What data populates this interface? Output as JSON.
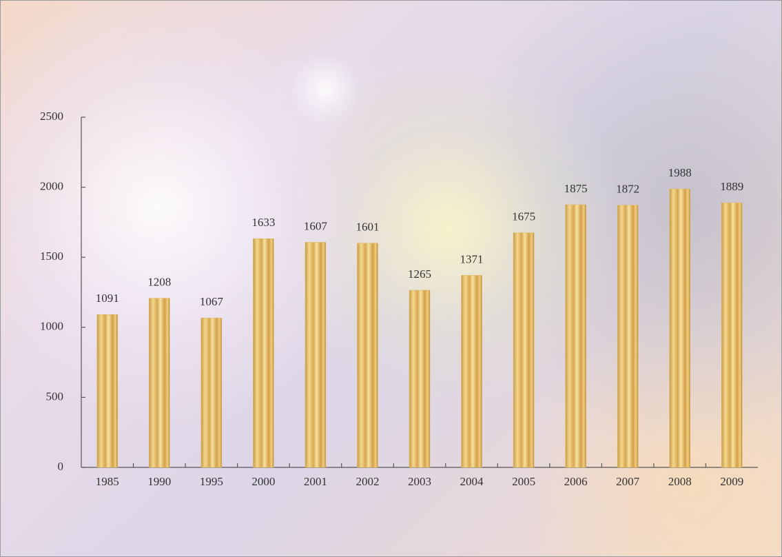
{
  "chart_data": {
    "type": "bar",
    "categories": [
      "1985",
      "1990",
      "1995",
      "2000",
      "2001",
      "2002",
      "2003",
      "2004",
      "2005",
      "2006",
      "2007",
      "2008",
      "2009"
    ],
    "values": [
      1091,
      1208,
      1067,
      1633,
      1607,
      1601,
      1265,
      1371,
      1675,
      1875,
      1872,
      1988,
      1889
    ],
    "color": "#e0b560",
    "ylim": [
      0,
      2500
    ],
    "yticks": [
      0,
      500,
      1000,
      1500,
      2000,
      2500
    ],
    "grid": false
  }
}
